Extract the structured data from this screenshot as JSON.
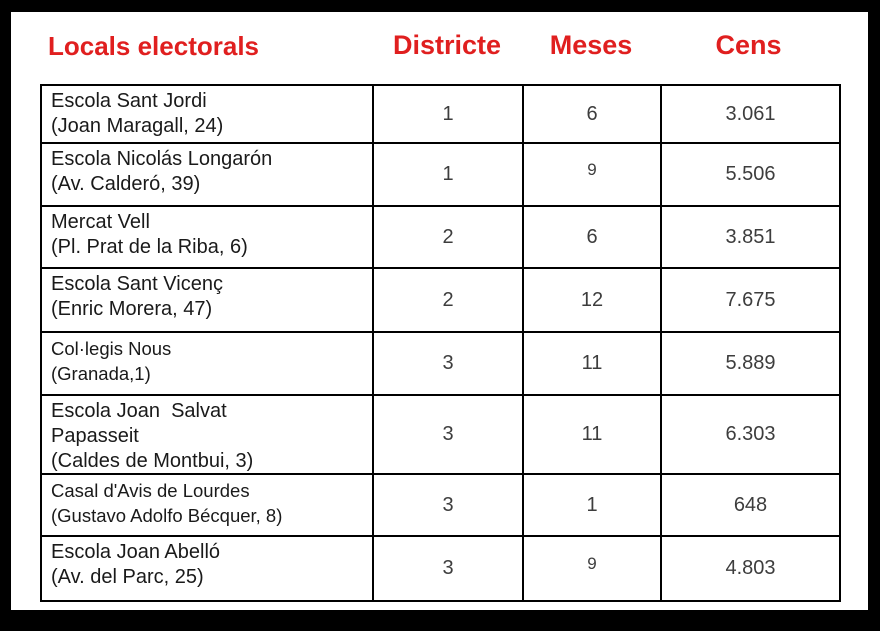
{
  "colors": {
    "accent_red": "#e01f1f",
    "border_black": "#000000",
    "background_white": "#ffffff"
  },
  "header": {
    "title": "Locals electorals",
    "col_districte": "Districte",
    "col_meses": "Meses",
    "col_cens": "Cens"
  },
  "table": {
    "rows": [
      {
        "name": "Escola Sant Jordi",
        "address": "(Joan Maragall, 24)",
        "districte": "1",
        "meses": "6",
        "cens": "3.061"
      },
      {
        "name": "Escola Nicolás Longarón",
        "address": "(Av. Calderó, 39)",
        "districte": "1",
        "meses": "9",
        "cens": "5.506"
      },
      {
        "name": "Mercat Vell",
        "address": "(Pl. Prat de la Riba, 6)",
        "districte": "2",
        "meses": "6",
        "cens": "3.851"
      },
      {
        "name": "Escola Sant Vicenç",
        "address": "(Enric Morera, 47)",
        "districte": "2",
        "meses": "12",
        "cens": "7.675"
      },
      {
        "name": "Col·legis Nous",
        "address": "(Granada,1)",
        "districte": "3",
        "meses": "11",
        "cens": "5.889"
      },
      {
        "name": "Escola Joan  Salvat\nPapasseit",
        "address": "(Caldes de Montbui, 3)",
        "districte": "3",
        "meses": "11",
        "cens": "6.303"
      },
      {
        "name": "Casal d'Avis de Lourdes",
        "address": "(Gustavo Adolfo Bécquer, 8)",
        "districte": "3",
        "meses": "1",
        "cens": "648"
      },
      {
        "name": "Escola Joan Abelló",
        "address": "(Av. del Parc, 25)",
        "districte": "3",
        "meses": "9",
        "cens": "4.803"
      }
    ]
  }
}
